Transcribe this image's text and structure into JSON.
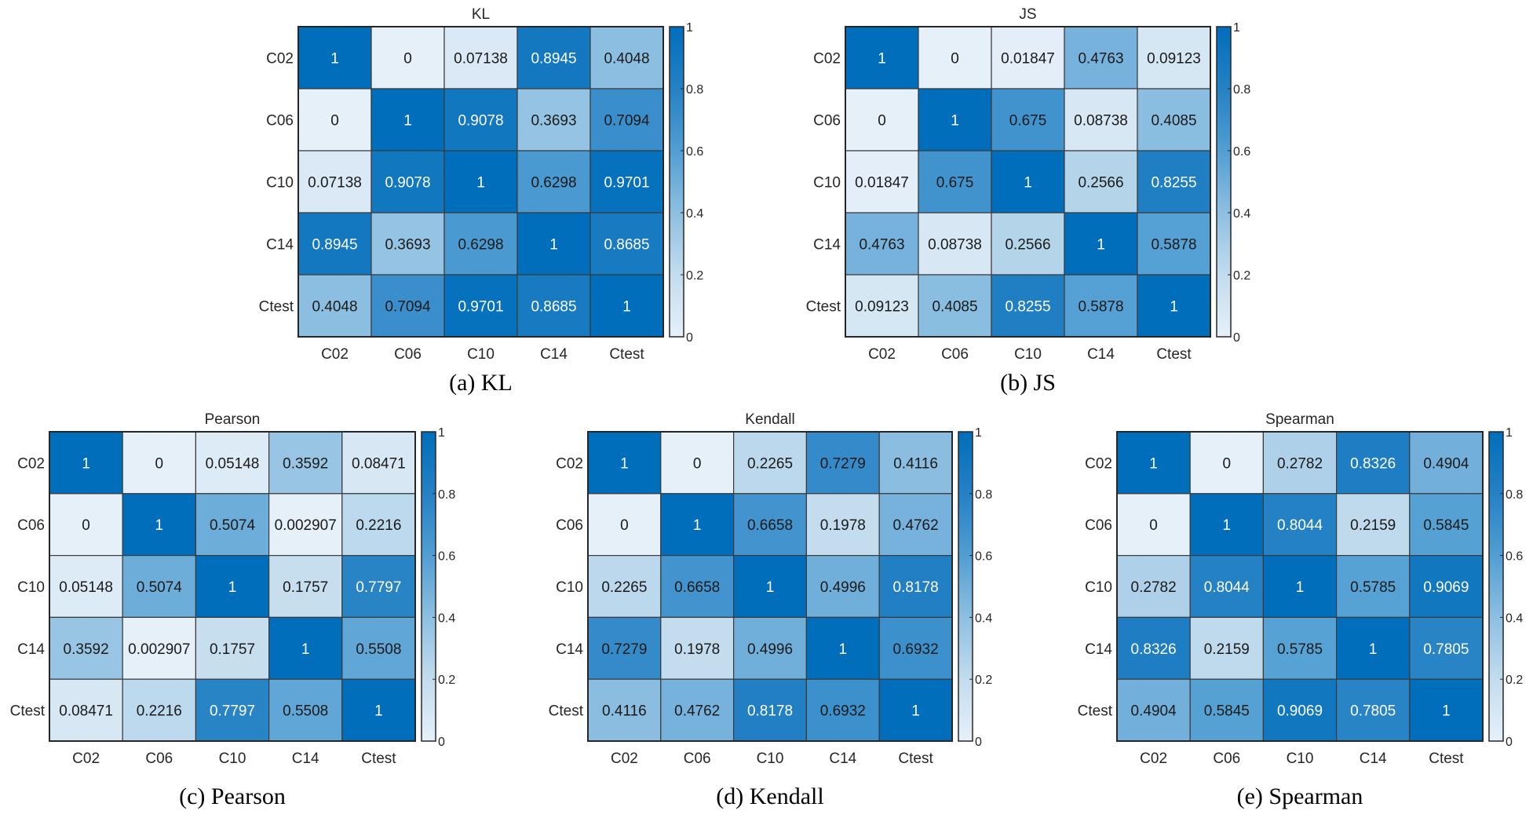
{
  "figure": {
    "captions": [
      "(a) KL",
      "(b) JS",
      "(c) Pearson",
      "(d) Kendall",
      "(e) Spearman"
    ]
  },
  "colormap": {
    "low": "#e6f0f9",
    "high": "#006ebb",
    "stops": [
      "#e6f0f9",
      "#c3dcee",
      "#8dbfe1",
      "#519ed3",
      "#2581c4",
      "#006ebb"
    ],
    "range": [
      0,
      1
    ],
    "ticks": [
      "0",
      "0.2",
      "0.4",
      "0.6",
      "0.8",
      "1"
    ]
  },
  "chart_data": [
    {
      "type": "heatmap",
      "title": "KL",
      "caption": "(a) KL",
      "xlabels": [
        "C02",
        "C06",
        "C10",
        "C14",
        "Ctest"
      ],
      "ylabels": [
        "C02",
        "C06",
        "C10",
        "C14",
        "Ctest"
      ],
      "clim": [
        0,
        1
      ],
      "colorbar_ticks": [
        0,
        0.2,
        0.4,
        0.6,
        0.8,
        1
      ],
      "values": [
        [
          "1",
          "0",
          "0.07138",
          "0.8945",
          "0.4048"
        ],
        [
          "0",
          "1",
          "0.9078",
          "0.3693",
          "0.7094"
        ],
        [
          "0.07138",
          "0.9078",
          "1",
          "0.6298",
          "0.9701"
        ],
        [
          "0.8945",
          "0.3693",
          "0.6298",
          "1",
          "0.8685"
        ],
        [
          "0.4048",
          "0.7094",
          "0.9701",
          "0.8685",
          "1"
        ]
      ]
    },
    {
      "type": "heatmap",
      "title": "JS",
      "caption": "(b) JS",
      "xlabels": [
        "C02",
        "C06",
        "C10",
        "C14",
        "Ctest"
      ],
      "ylabels": [
        "C02",
        "C06",
        "C10",
        "C14",
        "Ctest"
      ],
      "clim": [
        0,
        1
      ],
      "colorbar_ticks": [
        0,
        0.2,
        0.4,
        0.6,
        0.8,
        1
      ],
      "values": [
        [
          "1",
          "0",
          "0.01847",
          "0.4763",
          "0.09123"
        ],
        [
          "0",
          "1",
          "0.675",
          "0.08738",
          "0.4085"
        ],
        [
          "0.01847",
          "0.675",
          "1",
          "0.2566",
          "0.8255"
        ],
        [
          "0.4763",
          "0.08738",
          "0.2566",
          "1",
          "0.5878"
        ],
        [
          "0.09123",
          "0.4085",
          "0.8255",
          "0.5878",
          "1"
        ]
      ]
    },
    {
      "type": "heatmap",
      "title": "Pearson",
      "caption": "(c) Pearson",
      "xlabels": [
        "C02",
        "C06",
        "C10",
        "C14",
        "Ctest"
      ],
      "ylabels": [
        "C02",
        "C06",
        "C10",
        "C14",
        "Ctest"
      ],
      "clim": [
        0,
        1
      ],
      "colorbar_ticks": [
        0,
        0.2,
        0.4,
        0.6,
        0.8,
        1
      ],
      "values": [
        [
          "1",
          "0",
          "0.05148",
          "0.3592",
          "0.08471"
        ],
        [
          "0",
          "1",
          "0.5074",
          "0.002907",
          "0.2216"
        ],
        [
          "0.05148",
          "0.5074",
          "1",
          "0.1757",
          "0.7797"
        ],
        [
          "0.3592",
          "0.002907",
          "0.1757",
          "1",
          "0.5508"
        ],
        [
          "0.08471",
          "0.2216",
          "0.7797",
          "0.5508",
          "1"
        ]
      ]
    },
    {
      "type": "heatmap",
      "title": "Kendall",
      "caption": "(d) Kendall",
      "xlabels": [
        "C02",
        "C06",
        "C10",
        "C14",
        "Ctest"
      ],
      "ylabels": [
        "C02",
        "C06",
        "C10",
        "C14",
        "Ctest"
      ],
      "clim": [
        0,
        1
      ],
      "colorbar_ticks": [
        0,
        0.2,
        0.4,
        0.6,
        0.8,
        1
      ],
      "values": [
        [
          "1",
          "0",
          "0.2265",
          "0.7279",
          "0.4116"
        ],
        [
          "0",
          "1",
          "0.6658",
          "0.1978",
          "0.4762"
        ],
        [
          "0.2265",
          "0.6658",
          "1",
          "0.4996",
          "0.8178"
        ],
        [
          "0.7279",
          "0.1978",
          "0.4996",
          "1",
          "0.6932"
        ],
        [
          "0.4116",
          "0.4762",
          "0.8178",
          "0.6932",
          "1"
        ]
      ]
    },
    {
      "type": "heatmap",
      "title": "Spearman",
      "caption": "(e) Spearman",
      "xlabels": [
        "C02",
        "C06",
        "C10",
        "C14",
        "Ctest"
      ],
      "ylabels": [
        "C02",
        "C06",
        "C10",
        "C14",
        "Ctest"
      ],
      "clim": [
        0,
        1
      ],
      "colorbar_ticks": [
        0,
        0.2,
        0.4,
        0.6,
        0.8,
        1
      ],
      "values": [
        [
          "1",
          "0",
          "0.2782",
          "0.8326",
          "0.4904"
        ],
        [
          "0",
          "1",
          "0.8044",
          "0.2159",
          "0.5845"
        ],
        [
          "0.2782",
          "0.8044",
          "1",
          "0.5785",
          "0.9069"
        ],
        [
          "0.8326",
          "0.2159",
          "0.5785",
          "1",
          "0.7805"
        ],
        [
          "0.4904",
          "0.5845",
          "0.9069",
          "0.7805",
          "1"
        ]
      ]
    }
  ]
}
